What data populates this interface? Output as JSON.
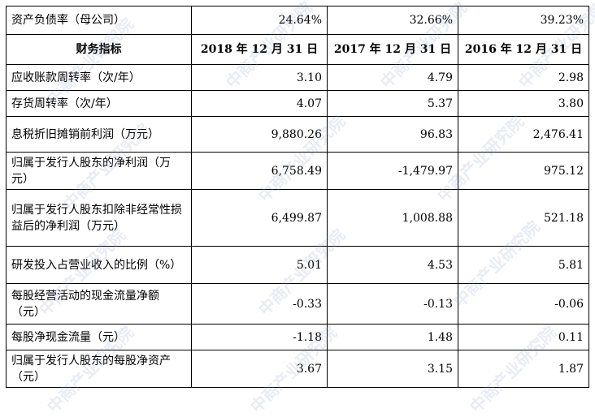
{
  "top_row": {
    "label": "资产负债率（母公司）",
    "values": [
      "24.64%",
      "32.66%",
      "39.23%"
    ]
  },
  "header": {
    "label": "财务指标",
    "columns": [
      "2018 年 12 月 31 日",
      "2017 年 12 月 31 日",
      "2016 年 12 月 31 日"
    ]
  },
  "rows": [
    {
      "label": "应收账款周转率（次/年）",
      "values": [
        "3.10",
        "4.79",
        "2.98"
      ]
    },
    {
      "label": "存货周转率（次/年）",
      "values": [
        "4.07",
        "5.37",
        "3.80"
      ]
    },
    {
      "label": "息税折旧摊销前利润（万元）",
      "values": [
        "9,880.26",
        "96.83",
        "2,476.41"
      ]
    },
    {
      "label": "归属于发行人股东的净利润（万元）",
      "values": [
        "6,758.49",
        "-1,479.97",
        "975.12"
      ]
    },
    {
      "label": "归属于发行人股东扣除非经常性损益后的净利润（万元）",
      "values": [
        "6,499.87",
        "1,008.88",
        "521.18"
      ]
    },
    {
      "label": "研发投入占营业收入的比例（%）",
      "values": [
        "5.01",
        "4.53",
        "5.81"
      ]
    },
    {
      "label": "每股经营活动的现金流量净额（元）",
      "values": [
        "-0.33",
        "-0.13",
        "-0.06"
      ]
    },
    {
      "label": "每股净现金流量（元）",
      "values": [
        "-1.18",
        "1.48",
        "0.11"
      ]
    },
    {
      "label": "归属于发行人股东的每股净资产（元）",
      "values": [
        "3.67",
        "3.15",
        "1.87"
      ]
    }
  ],
  "watermark": "中商产业研究院"
}
